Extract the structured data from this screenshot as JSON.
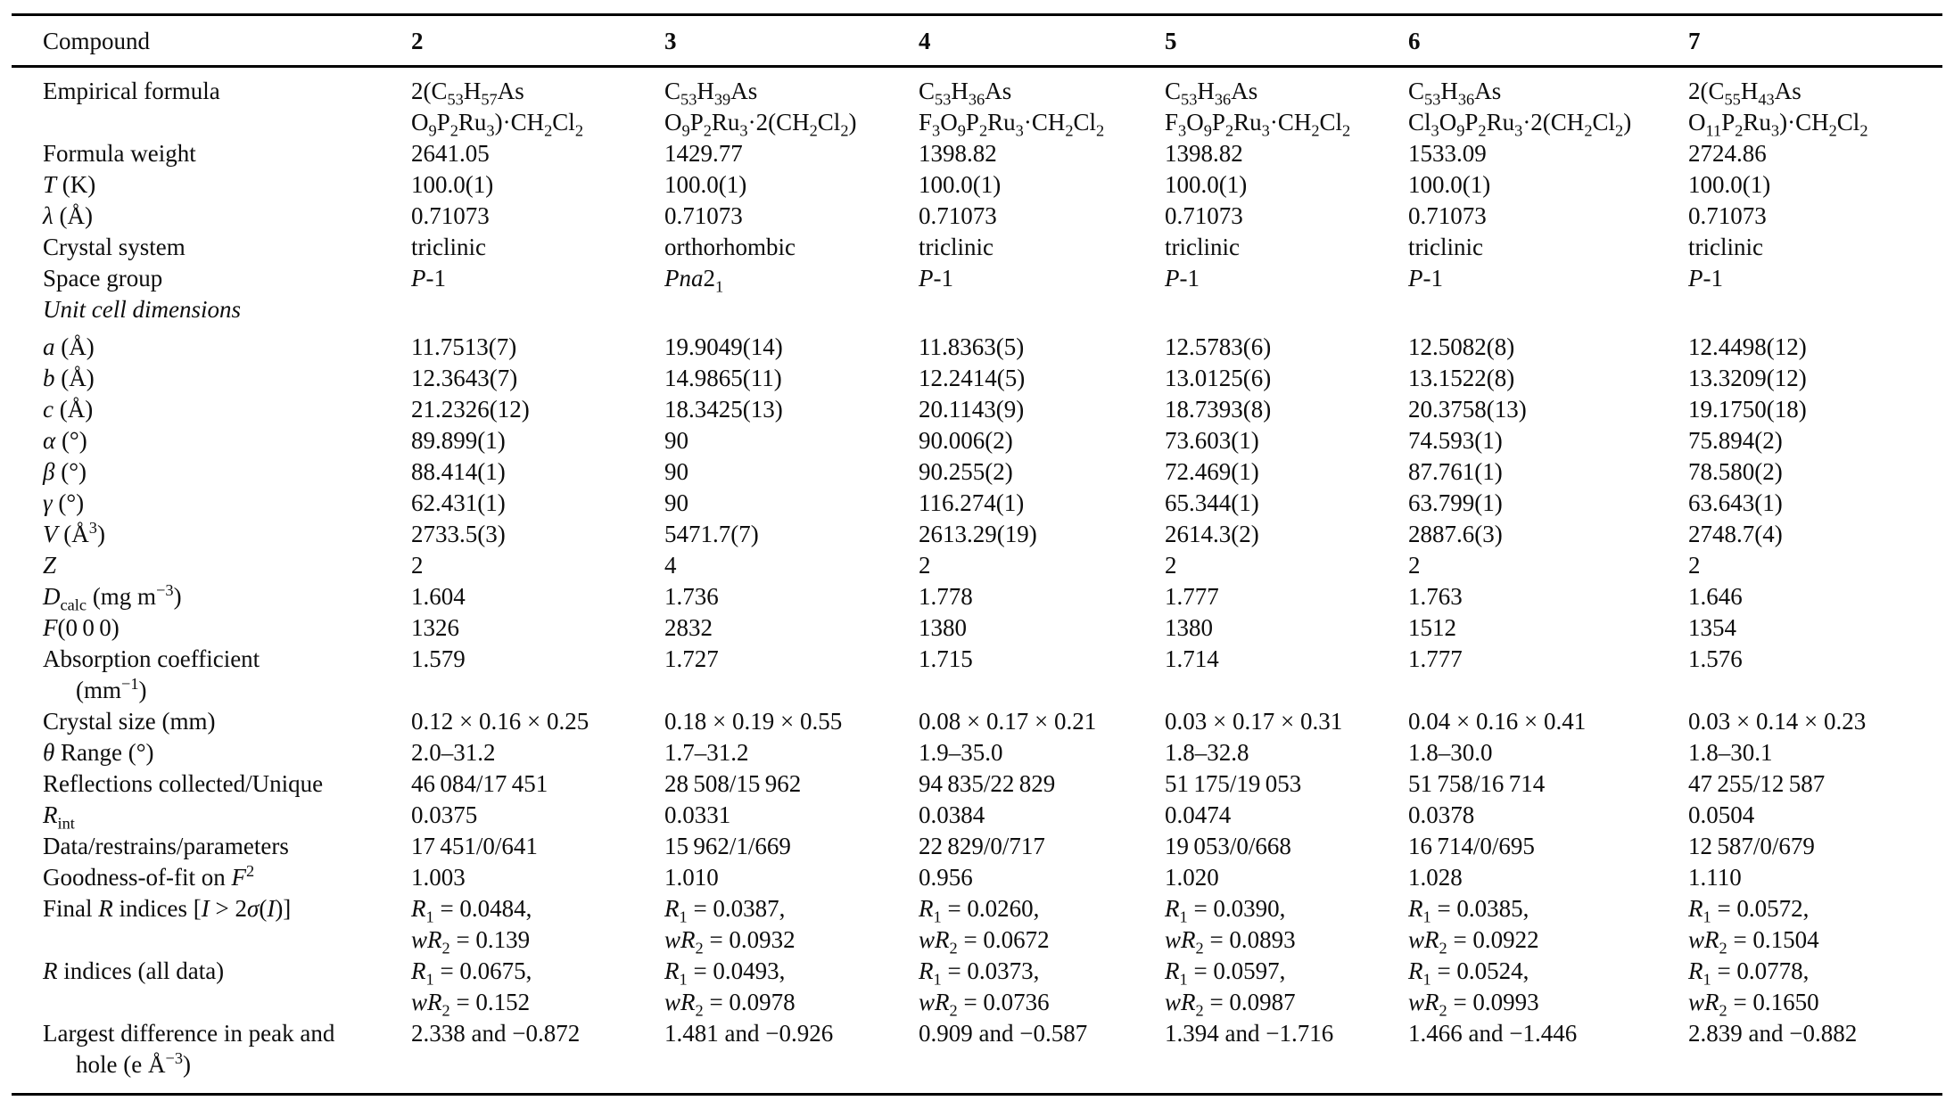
{
  "page": {
    "background_color": "#ffffff",
    "text_color": "#0d0d0d",
    "rule_color": "#000000",
    "description": "Crystallographic and refinement data table for compounds 2-7"
  },
  "table": {
    "columns": [
      "Compound",
      "2",
      "3",
      "4",
      "5",
      "6",
      "7"
    ],
    "rows": [
      {
        "label": "Empirical formula",
        "values": [
          "2(C~53~H~57~As\nO~9~P~2~Ru~3~)·CH~2~Cl~2~",
          "C~53~H~39~As\nO~9~P~2~Ru~3~·2(CH~2~Cl~2~)",
          "C~53~H~36~As\nF~3~O~9~P~2~Ru~3~·CH~2~Cl~2~",
          "C~53~H~36~As\nF~3~O~9~P~2~Ru~3~·CH~2~Cl~2~",
          "C~53~H~36~As\nCl~3~O~9~P~2~Ru~3~·2(CH~2~Cl~2~)",
          "2(C~55~H~43~As\nO~11~P~2~Ru~3~)·CH~2~Cl~2~"
        ]
      },
      {
        "label": "Formula weight",
        "values": [
          "2641.05",
          "1429.77",
          "1398.82",
          "1398.82",
          "1533.09",
          "2724.86"
        ]
      },
      {
        "label": "*T* (K)",
        "values": [
          "100.0(1)",
          "100.0(1)",
          "100.0(1)",
          "100.0(1)",
          "100.0(1)",
          "100.0(1)"
        ]
      },
      {
        "label": "*λ* (Å)",
        "values": [
          "0.71073",
          "0.71073",
          "0.71073",
          "0.71073",
          "0.71073",
          "0.71073"
        ]
      },
      {
        "label": "Crystal system",
        "values": [
          "triclinic",
          "orthorhombic",
          "triclinic",
          "triclinic",
          "triclinic",
          "triclinic"
        ]
      },
      {
        "label": "Space group",
        "values": [
          "*P*-1",
          "*Pna*2~1~",
          "*P*-1",
          "*P*-1",
          "*P*-1",
          "*P*-1"
        ]
      },
      {
        "label": "*Unit cell dimensions*",
        "gap": true,
        "values": [
          "",
          "",
          "",
          "",
          "",
          ""
        ]
      },
      {
        "label": "*a* (Å)",
        "values": [
          "11.7513(7)",
          "19.9049(14)",
          "11.8363(5)",
          "12.5783(6)",
          "12.5082(8)",
          "12.4498(12)"
        ]
      },
      {
        "label": "*b* (Å)",
        "values": [
          "12.3643(7)",
          "14.9865(11)",
          "12.2414(5)",
          "13.0125(6)",
          "13.1522(8)",
          "13.3209(12)"
        ]
      },
      {
        "label": "*c* (Å)",
        "values": [
          "21.2326(12)",
          "18.3425(13)",
          "20.1143(9)",
          "18.7393(8)",
          "20.3758(13)",
          "19.1750(18)"
        ]
      },
      {
        "label": "*α* (°)",
        "values": [
          "89.899(1)",
          "90",
          "90.006(2)",
          "73.603(1)",
          "74.593(1)",
          "75.894(2)"
        ]
      },
      {
        "label": "*β* (°)",
        "values": [
          "88.414(1)",
          "90",
          "90.255(2)",
          "72.469(1)",
          "87.761(1)",
          "78.580(2)"
        ]
      },
      {
        "label": "*γ* (°)",
        "values": [
          "62.431(1)",
          "90",
          "116.274(1)",
          "65.344(1)",
          "63.799(1)",
          "63.643(1)"
        ]
      },
      {
        "label": "*V* (Å^3^)",
        "values": [
          "2733.5(3)",
          "5471.7(7)",
          "2613.29(19)",
          "2614.3(2)",
          "2887.6(3)",
          "2748.7(4)"
        ]
      },
      {
        "label": "*Z*",
        "values": [
          "2",
          "4",
          "2",
          "2",
          "2",
          "2"
        ]
      },
      {
        "label": "*D*~calc~ (mg m^−3^)",
        "values": [
          "1.604",
          "1.736",
          "1.778",
          "1.777",
          "1.763",
          "1.646"
        ]
      },
      {
        "label": "*F*(0 0 0)",
        "values": [
          "1326",
          "2832",
          "1380",
          "1380",
          "1512",
          "1354"
        ]
      },
      {
        "label": "Absorption coefficient\n(mm^−1^)",
        "values": [
          "1.579",
          "1.727",
          "1.715",
          "1.714",
          "1.777",
          "1.576"
        ]
      },
      {
        "label": "Crystal size (mm)",
        "values": [
          "0.12 × 0.16 × 0.25",
          "0.18 × 0.19 × 0.55",
          "0.08 × 0.17 × 0.21",
          "0.03 × 0.17 × 0.31",
          "0.04 × 0.16 × 0.41",
          "0.03 × 0.14 × 0.23"
        ]
      },
      {
        "label": "*θ* Range (°)",
        "values": [
          "2.0–31.2",
          "1.7–31.2",
          "1.9–35.0",
          "1.8–32.8",
          "1.8–30.0",
          "1.8–30.1"
        ]
      },
      {
        "label": "Reflections collected/Unique",
        "values": [
          "46 084/17 451",
          "28 508/15 962",
          "94 835/22 829",
          "51 175/19 053",
          "51 758/16 714",
          "47 255/12 587"
        ]
      },
      {
        "label": "*R*~int~",
        "values": [
          "0.0375",
          "0.0331",
          "0.0384",
          "0.0474",
          "0.0378",
          "0.0504"
        ]
      },
      {
        "label": "Data/restrains/parameters",
        "values": [
          "17 451/0/641",
          "15 962/1/669",
          "22 829/0/717",
          "19 053/0/668",
          "16 714/0/695",
          "12 587/0/679"
        ]
      },
      {
        "label": "Goodness-of-fit on *F*^2^",
        "values": [
          "1.003",
          "1.010",
          "0.956",
          "1.020",
          "1.028",
          "1.110"
        ]
      },
      {
        "label": "Final *R* indices [*I* > 2*σ*(*I*)]",
        "values": [
          "*R*~1~ = 0.0484,\n*wR*~2~ = 0.139",
          "*R*~1~ = 0.0387,\n*wR*~2~ = 0.0932",
          "*R*~1~ = 0.0260,\n*wR*~2~ = 0.0672",
          "*R*~1~ = 0.0390,\n*wR*~2~ = 0.0893",
          "*R*~1~ = 0.0385,\n*wR*~2~ = 0.0922",
          "*R*~1~ = 0.0572,\n*wR*~2~ = 0.1504"
        ]
      },
      {
        "label": "*R* indices (all data)",
        "values": [
          "*R*~1~ = 0.0675,\n*wR*~2~ = 0.152",
          "*R*~1~ = 0.0493,\n*wR*~2~ = 0.0978",
          "*R*~1~ = 0.0373,\n*wR*~2~ = 0.0736",
          "*R*~1~ = 0.0597,\n*wR*~2~ = 0.0987",
          "*R*~1~ = 0.0524,\n*wR*~2~ = 0.0993",
          "*R*~1~ = 0.0778,\n*wR*~2~ = 0.1650"
        ]
      },
      {
        "label": "Largest difference in peak and\nhole (e Å^−3^)",
        "values": [
          "2.338 and −0.872",
          "1.481 and −0.926",
          "0.909 and −0.587",
          "1.394 and −1.716",
          "1.466 and −1.446",
          "2.839 and −0.882"
        ]
      }
    ]
  }
}
